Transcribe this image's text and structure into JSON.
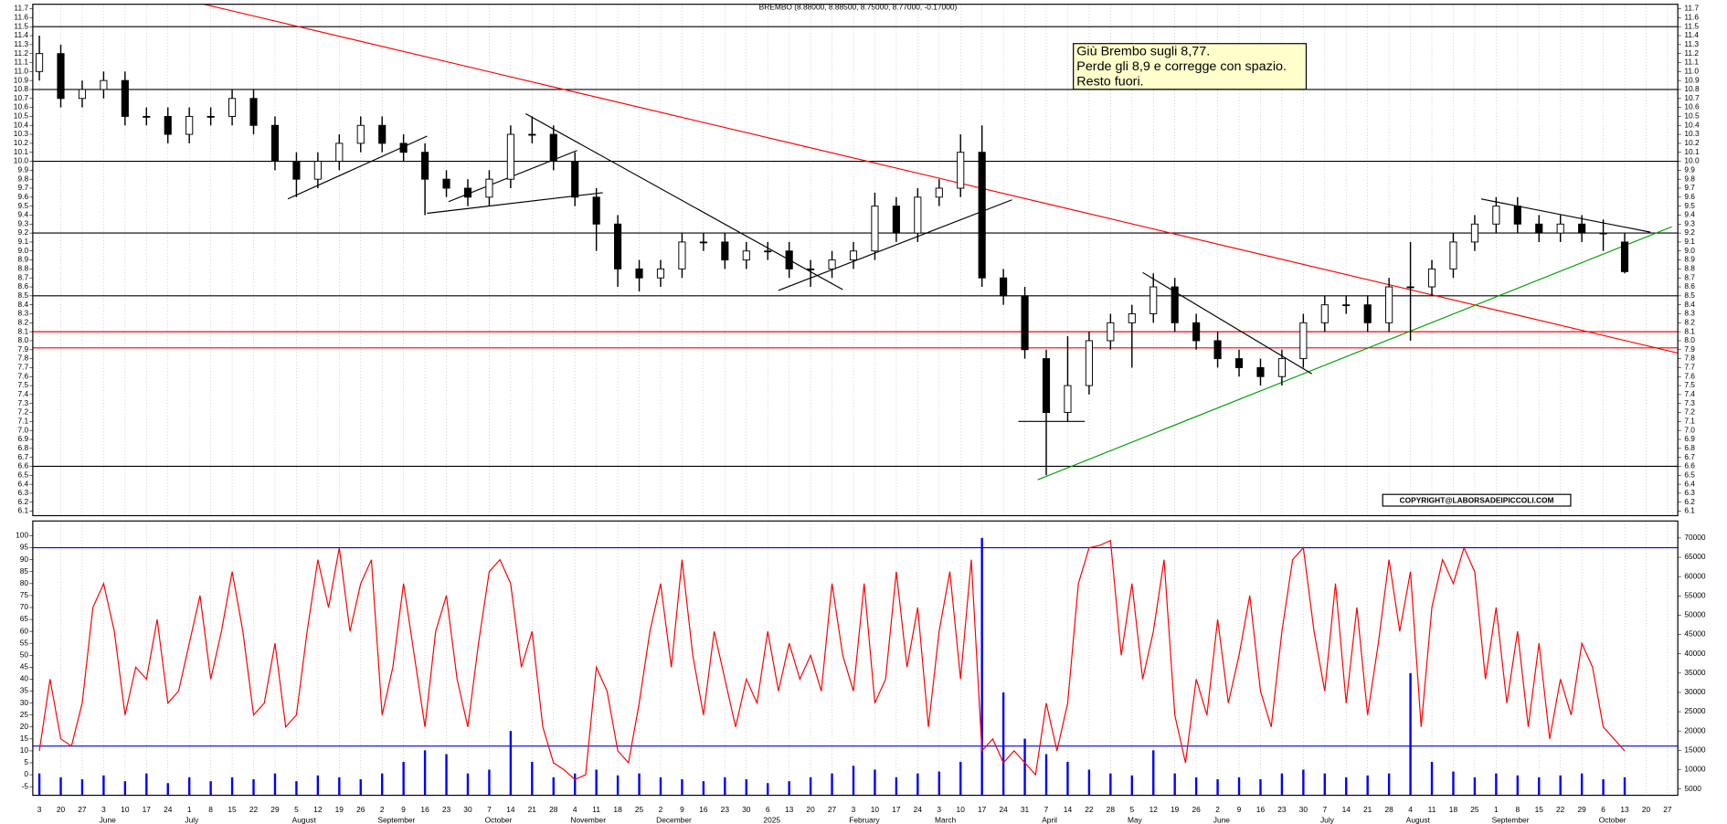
{
  "chart_data": {
    "type": "candlestick",
    "title": "BREMBO (8.88000, 8.88500, 8.75000, 8.77000, -0.17000)",
    "categories": [
      "3",
      "20",
      "27",
      "3",
      "10",
      "17",
      "24",
      "1",
      "8",
      "15",
      "22",
      "29",
      "5",
      "12",
      "19",
      "26",
      "2",
      "9",
      "16",
      "23",
      "30",
      "7",
      "14",
      "21",
      "28",
      "4",
      "11",
      "18",
      "25",
      "2",
      "9",
      "16",
      "23",
      "30",
      "6",
      "13",
      "20",
      "27",
      "3",
      "10",
      "17",
      "24",
      "3",
      "10",
      "17",
      "24",
      "31",
      "7",
      "14",
      "22",
      "28",
      "5",
      "12",
      "19",
      "26",
      "2",
      "9",
      "16",
      "23",
      "30",
      "7",
      "14",
      "21",
      "28",
      "4",
      "11",
      "18",
      "25",
      "1",
      "8",
      "15",
      "22",
      "29",
      "6",
      "13",
      "20",
      "27"
    ],
    "months": [
      "June",
      "July",
      "August",
      "September",
      "October",
      "November",
      "December",
      "2025",
      "February",
      "March",
      "April",
      "May",
      "June",
      "July",
      "August",
      "September",
      "October"
    ],
    "open": [
      11.0,
      11.2,
      10.7,
      10.8,
      10.9,
      10.5,
      10.5,
      10.3,
      10.5,
      10.5,
      10.7,
      10.4,
      10.0,
      9.8,
      10.0,
      10.2,
      10.4,
      10.2,
      10.1,
      9.8,
      9.7,
      9.6,
      9.8,
      10.3,
      10.3,
      10.0,
      9.6,
      9.3,
      8.8,
      8.7,
      8.8,
      9.1,
      9.1,
      8.9,
      9.0,
      9.0,
      8.8,
      8.8,
      8.9,
      9.0,
      9.5,
      9.2,
      9.6,
      9.7,
      10.1,
      8.7,
      8.5,
      7.8,
      7.2,
      7.5,
      8.0,
      8.2,
      8.3,
      8.6,
      8.2,
      8.0,
      7.8,
      7.7,
      7.6,
      7.8,
      8.2,
      8.4,
      8.4,
      8.2,
      8.6,
      8.6,
      8.8,
      9.1,
      9.3,
      9.5,
      9.3,
      9.2,
      9.3,
      9.2,
      9.1,
      null,
      null
    ],
    "high": [
      11.4,
      11.3,
      10.9,
      11.0,
      11.0,
      10.6,
      10.6,
      10.6,
      10.6,
      10.8,
      10.8,
      10.5,
      10.1,
      10.1,
      10.3,
      10.5,
      10.5,
      10.3,
      10.2,
      9.9,
      9.8,
      9.9,
      10.4,
      10.5,
      10.4,
      10.1,
      9.7,
      9.4,
      8.9,
      8.9,
      9.2,
      9.2,
      9.2,
      9.1,
      9.1,
      9.1,
      8.9,
      9.0,
      9.1,
      9.65,
      9.6,
      9.7,
      9.8,
      10.3,
      10.4,
      8.8,
      8.6,
      7.9,
      8.05,
      8.1,
      8.3,
      8.4,
      8.75,
      8.7,
      8.3,
      8.1,
      7.9,
      7.8,
      7.9,
      8.3,
      8.5,
      8.5,
      8.5,
      8.7,
      9.1,
      8.9,
      9.2,
      9.4,
      9.6,
      9.6,
      9.4,
      9.4,
      9.4,
      9.35,
      9.2,
      null,
      null
    ],
    "low": [
      10.9,
      10.6,
      10.6,
      10.7,
      10.4,
      10.4,
      10.2,
      10.2,
      10.4,
      10.4,
      10.3,
      9.9,
      9.6,
      9.7,
      9.9,
      10.1,
      10.1,
      10.0,
      9.4,
      9.6,
      9.5,
      9.5,
      9.7,
      10.2,
      9.9,
      9.5,
      9.0,
      8.6,
      8.55,
      8.6,
      8.7,
      9.0,
      8.8,
      8.8,
      8.9,
      8.7,
      8.6,
      8.7,
      8.8,
      8.9,
      9.1,
      9.1,
      9.5,
      9.6,
      8.6,
      8.4,
      7.8,
      6.5,
      7.1,
      7.4,
      7.9,
      7.7,
      8.2,
      8.1,
      7.9,
      7.7,
      7.6,
      7.5,
      7.5,
      7.7,
      8.1,
      8.3,
      8.1,
      8.1,
      8.0,
      8.5,
      8.7,
      9.0,
      9.2,
      9.2,
      9.1,
      9.1,
      9.1,
      9.0,
      8.75,
      null,
      null
    ],
    "close": [
      11.2,
      10.7,
      10.8,
      10.9,
      10.5,
      10.5,
      10.3,
      10.5,
      10.5,
      10.7,
      10.4,
      10.0,
      9.8,
      10.0,
      10.2,
      10.4,
      10.2,
      10.1,
      9.8,
      9.7,
      9.6,
      9.8,
      10.3,
      10.3,
      10.0,
      9.6,
      9.3,
      8.8,
      8.7,
      8.8,
      9.1,
      9.1,
      8.9,
      9.0,
      9.0,
      8.8,
      8.8,
      8.9,
      9.0,
      9.5,
      9.2,
      9.6,
      9.7,
      10.1,
      8.7,
      8.5,
      7.9,
      7.2,
      7.5,
      8.0,
      8.2,
      8.3,
      8.6,
      8.2,
      8.0,
      7.8,
      7.7,
      7.6,
      7.8,
      8.2,
      8.4,
      8.4,
      8.2,
      8.6,
      8.6,
      8.8,
      9.1,
      9.3,
      9.5,
      9.3,
      9.2,
      9.3,
      9.2,
      9.2,
      8.77,
      null,
      null
    ],
    "ylim": [
      6.05,
      11.75
    ],
    "yticks": [
      6.1,
      6.2,
      6.3,
      6.4,
      6.5,
      6.6,
      6.7,
      6.8,
      6.9,
      {
        "value": 7,
        "label": "7.0"
      },
      7.1,
      7.2,
      7.3,
      7.4,
      7.5,
      7.6,
      7.7,
      7.8,
      7.9,
      {
        "value": 8,
        "label": "8.0"
      },
      8.1,
      8.2,
      8.3,
      8.4,
      8.5,
      8.6,
      8.7,
      8.8,
      8.9,
      {
        "value": 9,
        "label": "9.0"
      },
      9.1,
      9.2,
      9.3,
      9.4,
      9.5,
      9.6,
      9.7,
      9.8,
      9.9,
      {
        "value": 10,
        "label": "10.0"
      },
      10.1,
      10.2,
      10.3,
      10.4,
      10.5,
      10.6,
      10.7,
      10.8,
      10.9,
      {
        "value": 11,
        "label": "11.0"
      },
      11.1,
      11.2,
      11.3,
      11.4,
      11.5,
      11.6,
      11.7
    ],
    "hlines": [
      {
        "value": 11.5,
        "color": "#000000"
      },
      {
        "value": 10.8,
        "color": "#000000"
      },
      {
        "value": 10.0,
        "color": "#000000"
      },
      {
        "value": 9.2,
        "color": "#000000"
      },
      {
        "value": 8.5,
        "color": "#000000"
      },
      {
        "value": 6.6,
        "color": "#000000"
      },
      {
        "value": 8.1,
        "color": "#ff0000"
      },
      {
        "value": 7.92,
        "color": "#ff0000"
      }
    ],
    "trendlines": [
      {
        "color": "#ff0000",
        "points": [
          [
            6.8,
            11.8
          ],
          [
            76.7,
            7.85
          ]
        ]
      },
      {
        "color": "#00a000",
        "points": [
          [
            46.6,
            6.45
          ],
          [
            76.2,
            9.27
          ]
        ]
      },
      {
        "color": "#000000",
        "points": [
          [
            11.6,
            9.58
          ],
          [
            18.1,
            10.28
          ]
        ]
      },
      {
        "color": "#000000",
        "points": [
          [
            18.1,
            9.42
          ],
          [
            26.3,
            9.65
          ]
        ]
      },
      {
        "color": "#000000",
        "points": [
          [
            19.1,
            9.55
          ],
          [
            25.1,
            10.12
          ]
        ]
      },
      {
        "color": "#000000",
        "points": [
          [
            22.7,
            10.53
          ],
          [
            37.5,
            8.57
          ]
        ]
      },
      {
        "color": "#000000",
        "points": [
          [
            34.5,
            8.56
          ],
          [
            45.4,
            9.57
          ]
        ]
      },
      {
        "color": "#000000",
        "points": [
          [
            45.7,
            7.1
          ],
          [
            48.8,
            7.1
          ]
        ]
      },
      {
        "color": "#000000",
        "points": [
          [
            51.5,
            8.76
          ],
          [
            59.4,
            7.63
          ]
        ]
      },
      {
        "color": "#000000",
        "points": [
          [
            67.3,
            9.58
          ],
          [
            75.2,
            9.21
          ]
        ]
      }
    ],
    "annotation": [
      "Giù Brembo sugli 8,77.",
      "Perde gli 8,9 e corregge con spazio.",
      "Resto fuori."
    ],
    "copyright": "COPYRIGHT@LABORSADEIPICCOLI.COM",
    "oscillator": {
      "color": "#ff0000",
      "ylim": [
        -8.6,
        106.2
      ],
      "yticks": [
        -5,
        0,
        5,
        10,
        15,
        20,
        25,
        30,
        35,
        40,
        45,
        50,
        55,
        60,
        65,
        70,
        75,
        80,
        85,
        90,
        95,
        100
      ],
      "levels": [
        95,
        12
      ],
      "values": [
        10,
        40,
        15,
        12,
        30,
        70,
        80,
        60,
        25,
        45,
        40,
        65,
        30,
        35,
        55,
        75,
        40,
        60,
        85,
        60,
        25,
        30,
        55,
        20,
        25,
        60,
        90,
        70,
        95,
        60,
        80,
        90,
        25,
        45,
        80,
        50,
        20,
        60,
        75,
        40,
        20,
        55,
        85,
        90,
        80,
        45,
        60,
        20,
        5,
        2,
        -2,
        0,
        45,
        35,
        10,
        5,
        30,
        60,
        80,
        45,
        90,
        50,
        25,
        60,
        40,
        20,
        40,
        30,
        60,
        35,
        55,
        40,
        50,
        35,
        80,
        50,
        35,
        80,
        30,
        40,
        85,
        45,
        70,
        20,
        60,
        85,
        40,
        90,
        10,
        15,
        5,
        10,
        5,
        0,
        30,
        10,
        30,
        80,
        95,
        96,
        98,
        50,
        80,
        40,
        60,
        90,
        25,
        5,
        40,
        25,
        65,
        30,
        50,
        75,
        35,
        20,
        60,
        90,
        95,
        60,
        35,
        80,
        30,
        70,
        25,
        55,
        90,
        60,
        85,
        20,
        70,
        90,
        80,
        95,
        85,
        40,
        70,
        30,
        60,
        20,
        55,
        15,
        40,
        25,
        55,
        45,
        20,
        15,
        10
      ]
    },
    "volume": {
      "color": "#0000ff",
      "y2lim": [
        3350,
        74400
      ],
      "y2ticks": [
        5000,
        10000,
        15000,
        20000,
        25000,
        30000,
        35000,
        40000,
        45000,
        50000,
        55000,
        60000,
        65000,
        70000
      ],
      "values": [
        9000,
        8000,
        7500,
        8500,
        7000,
        9000,
        6500,
        8000,
        7000,
        8000,
        7500,
        9000,
        7000,
        8500,
        8000,
        7500,
        9000,
        12000,
        15000,
        14000,
        9000,
        10000,
        20000,
        12000,
        8000,
        9000,
        10000,
        8500,
        9000,
        8000,
        7500,
        7000,
        8000,
        7500,
        6500,
        7000,
        8000,
        9000,
        11000,
        10000,
        8000,
        9000,
        9500,
        12000,
        70000,
        30000,
        18000,
        14000,
        12000,
        10000,
        9000,
        8500,
        15000,
        9000,
        8000,
        7500,
        8000,
        7500,
        9000,
        10000,
        9000,
        8000,
        8500,
        9000,
        35000,
        12000,
        9500,
        8000,
        9000,
        8500,
        8000,
        8500,
        9000,
        7500,
        8000,
        null,
        null
      ]
    }
  }
}
